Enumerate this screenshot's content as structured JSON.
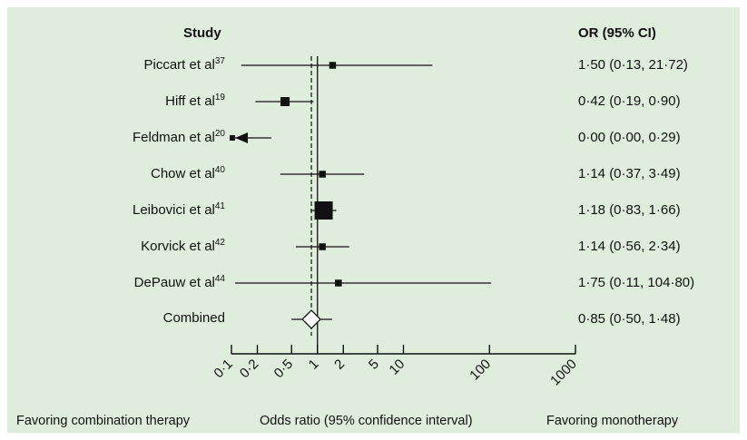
{
  "headers": {
    "study": "Study",
    "or": "OR (95% CI)"
  },
  "bottom_labels": {
    "left": "Favoring combination therapy",
    "center": "Odds ratio (95% confidence interval)",
    "right": "Favoring monotherapy"
  },
  "chart_data": {
    "type": "forest",
    "x_scale": "log",
    "xlim": [
      0.1,
      1000
    ],
    "x_ticks": [
      0.1,
      0.2,
      0.5,
      1,
      2,
      5,
      10,
      100,
      1000
    ],
    "x_tick_labels": [
      "0·1",
      "0·2",
      "0·5",
      "1",
      "2",
      "5",
      "10",
      "100",
      "1000"
    ],
    "reference_line": 1,
    "combined_line": 0.85,
    "rows": [
      {
        "name": "Piccart et al",
        "ref": "37",
        "or": 1.5,
        "lo": 0.13,
        "hi": 21.72,
        "label": "1·50 (0·13, 21·72)",
        "marker": "square",
        "weight": 1
      },
      {
        "name": "Hiff et al",
        "ref": "19",
        "or": 0.42,
        "lo": 0.19,
        "hi": 0.9,
        "label": "0·42 (0·19, 0·90)",
        "marker": "square",
        "weight": 2
      },
      {
        "name": "Feldman et al",
        "ref": "20",
        "or": 0.0,
        "lo": 0.0,
        "hi": 0.29,
        "label": "0·00 (0·00, 0·29)",
        "marker": "square",
        "weight": 1,
        "truncated_left": true
      },
      {
        "name": "Chow et al",
        "ref": "40",
        "or": 1.14,
        "lo": 0.37,
        "hi": 3.49,
        "label": "1·14 (0·37, 3·49)",
        "marker": "square",
        "weight": 1
      },
      {
        "name": "Leibovici et al",
        "ref": "41",
        "or": 1.18,
        "lo": 0.83,
        "hi": 1.66,
        "label": "1·18 (0·83, 1·66)",
        "marker": "square",
        "weight": 5
      },
      {
        "name": "Korvick et al",
        "ref": "42",
        "or": 1.14,
        "lo": 0.56,
        "hi": 2.34,
        "label": "1·14 (0·56, 2·34)",
        "marker": "square",
        "weight": 1
      },
      {
        "name": "DePauw et al",
        "ref": "44",
        "or": 1.75,
        "lo": 0.11,
        "hi": 104.8,
        "label": "1·75 (0·11, 104·80)",
        "marker": "square",
        "weight": 1
      },
      {
        "name": "Combined",
        "ref": "",
        "or": 0.85,
        "lo": 0.5,
        "hi": 1.48,
        "label": "0·85 (0·50, 1·48)",
        "marker": "diamond",
        "weight": 0
      }
    ]
  }
}
